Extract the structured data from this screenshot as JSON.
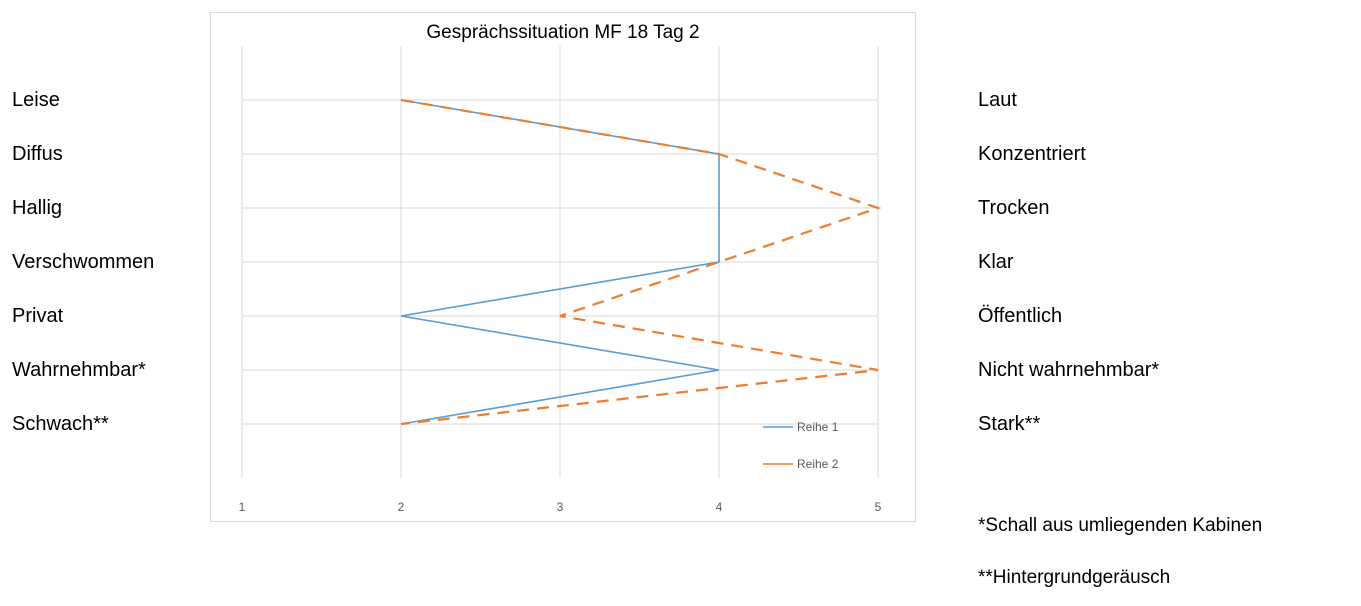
{
  "left_labels": [
    "Leise",
    "Diffus",
    "Hallig",
    "Verschwommen",
    "Privat",
    "Wahrnehmbar*",
    "Schwach**"
  ],
  "right_labels": [
    "Laut",
    "Konzentriert",
    "Trocken",
    "Klar",
    "Öffentlich",
    "Nicht wahrnehmbar*",
    "Stark**"
  ],
  "footnotes": [
    "*Schall aus umliegenden Kabinen",
    "**Hintergrundgeräusch"
  ],
  "chart_data": {
    "type": "line",
    "title": "Gesprächssituation MF 18 Tag 2",
    "categories": [
      "Leise / Laut",
      "Diffus / Konzentriert",
      "Hallig / Trocken",
      "Verschwommen / Klar",
      "Privat / Öffentlich",
      "Wahrnehmbar* / Nicht wahrnehmbar*",
      "Schwach** / Stark**"
    ],
    "xlim": [
      1,
      5
    ],
    "xticks": [
      1,
      2,
      3,
      4,
      5
    ],
    "grid": true,
    "legend": "bottom-right",
    "series": [
      {
        "name": "Reihe 1",
        "values": [
          2,
          4,
          4,
          4,
          2,
          4,
          2
        ],
        "color": "#5b9bd5",
        "style": "solid"
      },
      {
        "name": "Reihe 2",
        "values": [
          2,
          4,
          5,
          4,
          3,
          5,
          2
        ],
        "color": "#ed7d31",
        "style": "dashed"
      }
    ]
  }
}
